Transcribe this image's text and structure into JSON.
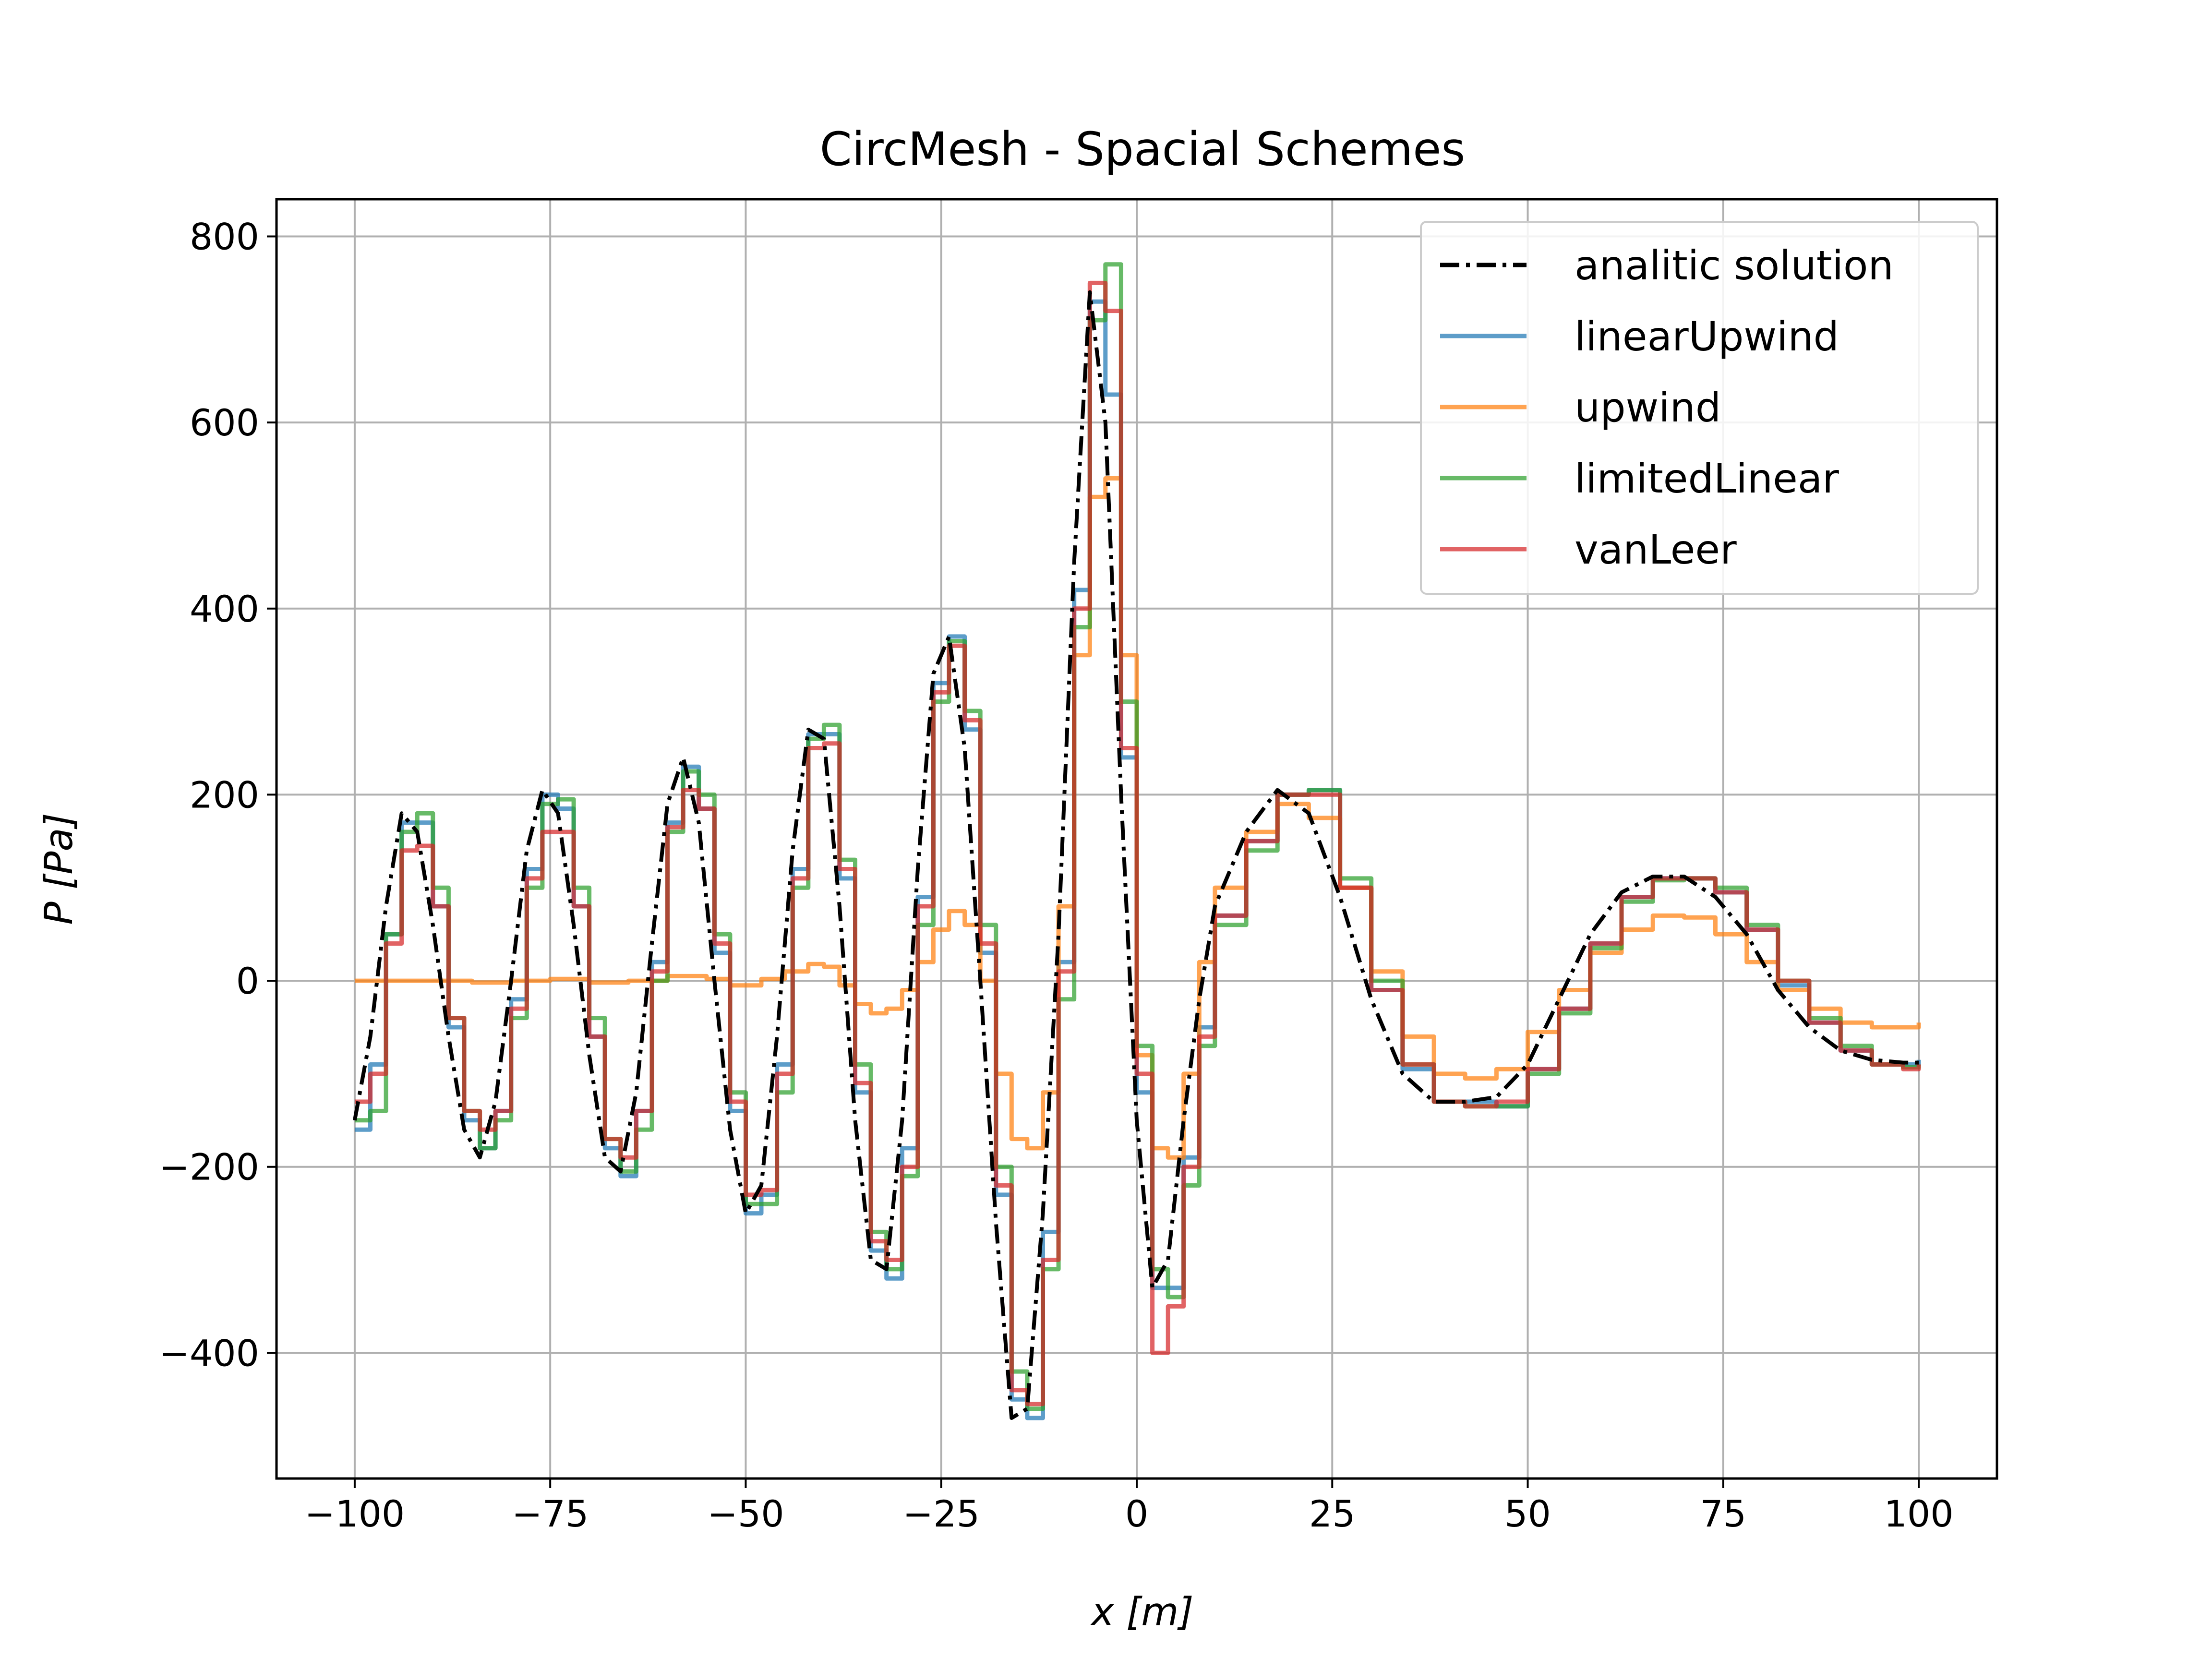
{
  "chart_data": {
    "type": "line",
    "title": "CircMesh - Spacial Schemes",
    "xlabel": "x [m]",
    "ylabel": "P [Pa]",
    "xlim": [
      -110,
      110
    ],
    "ylim": [
      -535,
      840
    ],
    "xticks": [
      -100,
      -75,
      -50,
      -25,
      0,
      25,
      50,
      75,
      100
    ],
    "yticks": [
      -400,
      -200,
      0,
      200,
      400,
      600,
      800
    ],
    "grid": true,
    "legend_position": "top-right",
    "series": [
      {
        "name": "analitic solution",
        "color": "#000000",
        "style": "dashdot",
        "x": [
          -100,
          -98,
          -96,
          -94,
          -92,
          -90,
          -88,
          -86,
          -84,
          -82,
          -80,
          -78,
          -76,
          -74,
          -72,
          -70,
          -68,
          -66,
          -64,
          -62,
          -60,
          -58,
          -56,
          -54,
          -52,
          -50,
          -48,
          -46,
          -44,
          -42,
          -40,
          -38,
          -36,
          -34,
          -32,
          -30,
          -28,
          -26,
          -24,
          -22,
          -20,
          -18,
          -16,
          -14,
          -12,
          -10,
          -8,
          -6,
          -4,
          -2,
          0,
          2,
          4,
          6,
          8,
          10,
          14,
          18,
          22,
          26,
          30,
          34,
          38,
          42,
          46,
          50,
          54,
          58,
          62,
          66,
          70,
          74,
          78,
          82,
          86,
          90,
          94,
          98,
          100
        ],
        "y": [
          -150,
          -60,
          80,
          180,
          160,
          60,
          -60,
          -160,
          -190,
          -130,
          0,
          140,
          205,
          180,
          60,
          -80,
          -190,
          -205,
          -120,
          40,
          190,
          240,
          170,
          0,
          -160,
          -250,
          -220,
          -60,
          140,
          270,
          260,
          80,
          -150,
          -300,
          -310,
          -150,
          120,
          330,
          370,
          250,
          0,
          -260,
          -470,
          -460,
          -250,
          50,
          450,
          740,
          600,
          200,
          -150,
          -330,
          -300,
          -150,
          -20,
          80,
          160,
          205,
          180,
          90,
          -20,
          -100,
          -130,
          -130,
          -125,
          -90,
          -20,
          50,
          95,
          112,
          112,
          90,
          50,
          -10,
          -50,
          -75,
          -85,
          -88,
          -88
        ]
      },
      {
        "name": "linearUpwind",
        "color": "#1f77b4",
        "style": "step",
        "x": [
          -100,
          -98,
          -96,
          -94,
          -92,
          -90,
          -88,
          -86,
          -84,
          -82,
          -80,
          -78,
          -76,
          -74,
          -72,
          -70,
          -68,
          -66,
          -64,
          -62,
          -60,
          -58,
          -56,
          -54,
          -52,
          -50,
          -48,
          -46,
          -44,
          -42,
          -40,
          -38,
          -36,
          -34,
          -32,
          -30,
          -28,
          -26,
          -24,
          -22,
          -20,
          -18,
          -16,
          -14,
          -12,
          -10,
          -8,
          -6,
          -4,
          -2,
          0,
          2,
          4,
          6,
          8,
          10,
          14,
          18,
          22,
          26,
          30,
          34,
          38,
          42,
          46,
          50,
          54,
          58,
          62,
          66,
          70,
          74,
          78,
          82,
          86,
          90,
          94,
          98,
          100
        ],
        "y": [
          -160,
          -90,
          50,
          170,
          170,
          80,
          -50,
          -150,
          -180,
          -140,
          -20,
          120,
          200,
          185,
          80,
          -60,
          -180,
          -210,
          -140,
          20,
          170,
          230,
          185,
          30,
          -140,
          -250,
          -230,
          -90,
          120,
          265,
          265,
          110,
          -120,
          -290,
          -320,
          -180,
          90,
          320,
          370,
          270,
          30,
          -230,
          -450,
          -470,
          -270,
          20,
          420,
          730,
          630,
          240,
          -120,
          -330,
          -330,
          -190,
          -50,
          70,
          150,
          200,
          205,
          100,
          -10,
          -95,
          -130,
          -130,
          -135,
          -95,
          -30,
          40,
          90,
          110,
          110,
          95,
          55,
          -5,
          -45,
          -75,
          -90,
          -90,
          -85
        ]
      },
      {
        "name": "upwind",
        "color": "#ff7f0e",
        "style": "step",
        "x": [
          -100,
          -95,
          -90,
          -85,
          -80,
          -75,
          -70,
          -65,
          -60,
          -55,
          -52,
          -50,
          -48,
          -45,
          -42,
          -40,
          -38,
          -36,
          -34,
          -32,
          -30,
          -28,
          -26,
          -24,
          -22,
          -20,
          -18,
          -16,
          -14,
          -12,
          -10,
          -8,
          -6,
          -4,
          -2,
          0,
          2,
          4,
          6,
          8,
          10,
          14,
          18,
          22,
          26,
          30,
          34,
          38,
          42,
          46,
          50,
          54,
          58,
          62,
          66,
          70,
          74,
          78,
          82,
          86,
          90,
          94,
          98,
          100
        ],
        "y": [
          0,
          0,
          0,
          -2,
          0,
          2,
          -2,
          0,
          5,
          2,
          -5,
          -5,
          2,
          10,
          18,
          15,
          -5,
          -25,
          -35,
          -30,
          -10,
          20,
          55,
          75,
          60,
          0,
          -100,
          -170,
          -180,
          -120,
          80,
          350,
          520,
          540,
          350,
          -80,
          -180,
          -190,
          -100,
          20,
          100,
          160,
          190,
          175,
          100,
          10,
          -60,
          -100,
          -105,
          -95,
          -55,
          -10,
          30,
          55,
          70,
          68,
          50,
          20,
          -10,
          -30,
          -45,
          -50,
          -50,
          -45
        ]
      },
      {
        "name": "limitedLinear",
        "color": "#2ca02c",
        "style": "step",
        "x": [
          -100,
          -98,
          -96,
          -94,
          -92,
          -90,
          -88,
          -86,
          -84,
          -82,
          -80,
          -78,
          -76,
          -74,
          -72,
          -70,
          -68,
          -66,
          -64,
          -62,
          -60,
          -58,
          -56,
          -54,
          -52,
          -50,
          -48,
          -46,
          -44,
          -42,
          -40,
          -38,
          -36,
          -34,
          -32,
          -30,
          -28,
          -26,
          -24,
          -22,
          -20,
          -18,
          -16,
          -14,
          -12,
          -10,
          -8,
          -6,
          -4,
          -2,
          0,
          2,
          4,
          6,
          8,
          10,
          14,
          18,
          22,
          26,
          30,
          34,
          38,
          42,
          46,
          50,
          54,
          58,
          62,
          66,
          70,
          74,
          78,
          82,
          86,
          90,
          94,
          98,
          100
        ],
        "y": [
          -150,
          -140,
          50,
          160,
          180,
          100,
          -40,
          -140,
          -180,
          -150,
          -40,
          100,
          190,
          195,
          100,
          -40,
          -170,
          -205,
          -160,
          0,
          160,
          225,
          200,
          50,
          -120,
          -240,
          -240,
          -120,
          100,
          260,
          275,
          130,
          -90,
          -270,
          -310,
          -210,
          60,
          300,
          365,
          290,
          60,
          -200,
          -420,
          -460,
          -310,
          -20,
          380,
          710,
          770,
          300,
          -70,
          -310,
          -340,
          -220,
          -70,
          60,
          140,
          200,
          205,
          110,
          0,
          -90,
          -130,
          -135,
          -135,
          -100,
          -35,
          35,
          85,
          108,
          110,
          100,
          60,
          0,
          -40,
          -70,
          -90,
          -93,
          -90
        ]
      },
      {
        "name": "vanLeer",
        "color": "#d62728",
        "style": "step",
        "x": [
          -100,
          -98,
          -96,
          -94,
          -92,
          -90,
          -88,
          -86,
          -84,
          -82,
          -80,
          -78,
          -76,
          -74,
          -72,
          -70,
          -68,
          -66,
          -64,
          -62,
          -60,
          -58,
          -56,
          -54,
          -52,
          -50,
          -48,
          -46,
          -44,
          -42,
          -40,
          -38,
          -36,
          -34,
          -32,
          -30,
          -28,
          -26,
          -24,
          -22,
          -20,
          -18,
          -16,
          -14,
          -12,
          -10,
          -8,
          -6,
          -4,
          -2,
          0,
          2,
          4,
          6,
          8,
          10,
          14,
          18,
          22,
          26,
          30,
          34,
          38,
          42,
          46,
          50,
          54,
          58,
          62,
          66,
          70,
          74,
          78,
          82,
          86,
          90,
          94,
          98,
          100
        ],
        "y": [
          -130,
          -100,
          40,
          140,
          145,
          80,
          -40,
          -140,
          -160,
          -140,
          -30,
          110,
          160,
          160,
          80,
          -60,
          -170,
          -190,
          -140,
          10,
          165,
          205,
          185,
          40,
          -130,
          -230,
          -225,
          -100,
          110,
          250,
          255,
          120,
          -110,
          -280,
          -300,
          -200,
          80,
          310,
          360,
          280,
          40,
          -220,
          -440,
          -455,
          -300,
          10,
          400,
          750,
          720,
          250,
          -100,
          -400,
          -350,
          -200,
          -60,
          70,
          150,
          200,
          200,
          100,
          -10,
          -90,
          -130,
          -135,
          -130,
          -95,
          -30,
          40,
          90,
          110,
          110,
          95,
          55,
          0,
          -45,
          -75,
          -90,
          -95,
          -90
        ]
      }
    ]
  }
}
